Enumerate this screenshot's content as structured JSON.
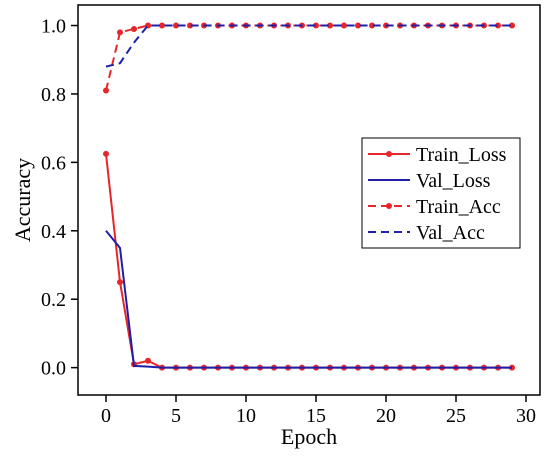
{
  "chart_data": {
    "type": "line",
    "xlabel": "Epoch",
    "ylabel": "Accuracy",
    "xlim": [
      -2,
      31
    ],
    "ylim": [
      -0.08,
      1.06
    ],
    "xticks": [
      0,
      5,
      10,
      15,
      20,
      25,
      30
    ],
    "yticks": [
      0.0,
      0.2,
      0.4,
      0.6,
      0.8,
      1.0
    ],
    "xtick_labels": [
      "0",
      "5",
      "10",
      "15",
      "20",
      "25",
      "30"
    ],
    "ytick_labels": [
      "0.0",
      "0.2",
      "0.4",
      "0.6",
      "0.8",
      "1.0"
    ],
    "grid": false,
    "legend_position": "center-right",
    "series": [
      {
        "name": "Train_Loss",
        "color": "#e8252a",
        "dash": "solid",
        "markers": true,
        "x": [
          0,
          1,
          2,
          3,
          4,
          5,
          6,
          7,
          8,
          9,
          10,
          11,
          12,
          13,
          14,
          15,
          16,
          17,
          18,
          19,
          20,
          21,
          22,
          23,
          24,
          25,
          26,
          27,
          28,
          29
        ],
        "y": [
          0.625,
          0.25,
          0.01,
          0.02,
          0.0,
          0.0,
          0.0,
          0.0,
          0.0,
          0.0,
          0.0,
          0.0,
          0.0,
          0.0,
          0.0,
          0.0,
          0.0,
          0.0,
          0.0,
          0.0,
          0.0,
          0.0,
          0.0,
          0.0,
          0.0,
          0.0,
          0.0,
          0.0,
          0.0,
          0.0
        ]
      },
      {
        "name": "Val_Loss",
        "color": "#1f1fa8",
        "dash": "solid",
        "markers": false,
        "x": [
          0,
          1,
          2,
          3,
          4,
          5,
          6,
          7,
          8,
          9,
          10,
          11,
          12,
          13,
          14,
          15,
          16,
          17,
          18,
          19,
          20,
          21,
          22,
          23,
          24,
          25,
          26,
          27,
          28,
          29
        ],
        "y": [
          0.4,
          0.35,
          0.005,
          0.003,
          0.0,
          0.0,
          0.0,
          0.0,
          0.0,
          0.0,
          0.0,
          0.0,
          0.0,
          0.0,
          0.0,
          0.0,
          0.0,
          0.0,
          0.0,
          0.0,
          0.0,
          0.0,
          0.0,
          0.0,
          0.0,
          0.0,
          0.0,
          0.0,
          0.0,
          0.0
        ]
      },
      {
        "name": "Train_Acc",
        "color": "#e8252a",
        "dash": "dashed",
        "markers": true,
        "x": [
          0,
          1,
          2,
          3,
          4,
          5,
          6,
          7,
          8,
          9,
          10,
          11,
          12,
          13,
          14,
          15,
          16,
          17,
          18,
          19,
          20,
          21,
          22,
          23,
          24,
          25,
          26,
          27,
          28,
          29
        ],
        "y": [
          0.81,
          0.98,
          0.99,
          1.0,
          1.0,
          1.0,
          1.0,
          1.0,
          1.0,
          1.0,
          1.0,
          1.0,
          1.0,
          1.0,
          1.0,
          1.0,
          1.0,
          1.0,
          1.0,
          1.0,
          1.0,
          1.0,
          1.0,
          1.0,
          1.0,
          1.0,
          1.0,
          1.0,
          1.0,
          1.0
        ]
      },
      {
        "name": "Val_Acc",
        "color": "#1f1fa8",
        "dash": "dashed",
        "markers": false,
        "x": [
          0,
          1,
          2,
          3,
          4,
          5,
          6,
          7,
          8,
          9,
          10,
          11,
          12,
          13,
          14,
          15,
          16,
          17,
          18,
          19,
          20,
          21,
          22,
          23,
          24,
          25,
          26,
          27,
          28,
          29
        ],
        "y": [
          0.88,
          0.89,
          0.95,
          1.0,
          1.0,
          1.0,
          1.0,
          1.0,
          1.0,
          1.0,
          1.0,
          1.0,
          1.0,
          1.0,
          1.0,
          1.0,
          1.0,
          1.0,
          1.0,
          1.0,
          1.0,
          1.0,
          1.0,
          1.0,
          1.0,
          1.0,
          1.0,
          1.0,
          1.0,
          1.0
        ]
      }
    ]
  }
}
